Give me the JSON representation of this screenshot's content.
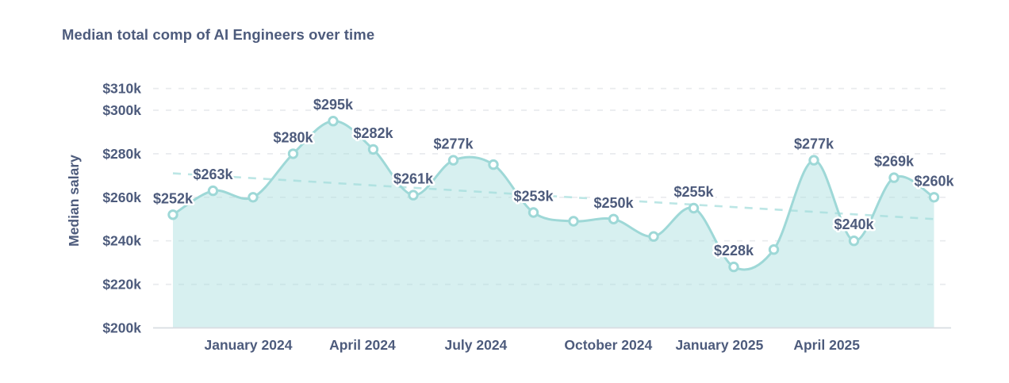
{
  "chart_data": {
    "type": "area",
    "title": "Median total comp of AI Engineers over time",
    "xlabel": "",
    "ylabel": "Median salary",
    "ylim": [
      200,
      310
    ],
    "grid": "horizontal-dashed",
    "legend": "none",
    "unit": "USD thousands",
    "points": [
      {
        "value": 252,
        "label": "$252k"
      },
      {
        "value": 263,
        "label": "$263k"
      },
      {
        "value": 260,
        "label": null
      },
      {
        "value": 280,
        "label": "$280k"
      },
      {
        "value": 295,
        "label": "$295k"
      },
      {
        "value": 282,
        "label": "$282k"
      },
      {
        "value": 261,
        "label": "$261k"
      },
      {
        "value": 277,
        "label": "$277k"
      },
      {
        "value": 275,
        "label": null
      },
      {
        "value": 253,
        "label": "$253k"
      },
      {
        "value": 249,
        "label": null
      },
      {
        "value": 250,
        "label": "$250k"
      },
      {
        "value": 242,
        "label": null
      },
      {
        "value": 255,
        "label": "$255k"
      },
      {
        "value": 228,
        "label": "$228k"
      },
      {
        "value": 236,
        "label": null
      },
      {
        "value": 277,
        "label": "$277k"
      },
      {
        "value": 240,
        "label": "$240k"
      },
      {
        "value": 269,
        "label": "$269k"
      },
      {
        "value": 260,
        "label": "$260k"
      }
    ],
    "y_ticks": [
      {
        "value": 310,
        "label": "$310k"
      },
      {
        "value": 300,
        "label": "$300k"
      },
      {
        "value": 280,
        "label": "$280k"
      },
      {
        "value": 260,
        "label": "$260k"
      },
      {
        "value": 240,
        "label": "$240k"
      },
      {
        "value": 220,
        "label": "$220k"
      },
      {
        "value": 200,
        "label": "$200k"
      }
    ],
    "x_ticks": [
      {
        "label": "January 2024",
        "t": 0.099
      },
      {
        "label": "April 2024",
        "t": 0.249
      },
      {
        "label": "July 2024",
        "t": 0.398
      },
      {
        "label": "October 2024",
        "t": 0.572
      },
      {
        "label": "January 2025",
        "t": 0.718
      },
      {
        "label": "April 2025",
        "t": 0.859
      }
    ],
    "trendline": {
      "start_value": 271,
      "end_value": 250,
      "style": "dashed"
    },
    "colors": {
      "text": "#4d5b7c",
      "line": "#9ed8d7",
      "area": "#a5dddc",
      "trend": "#bce6e5",
      "grid": "#e9ebee",
      "baseline": "#d9dde2",
      "marker_fill": "#ffffff"
    }
  }
}
